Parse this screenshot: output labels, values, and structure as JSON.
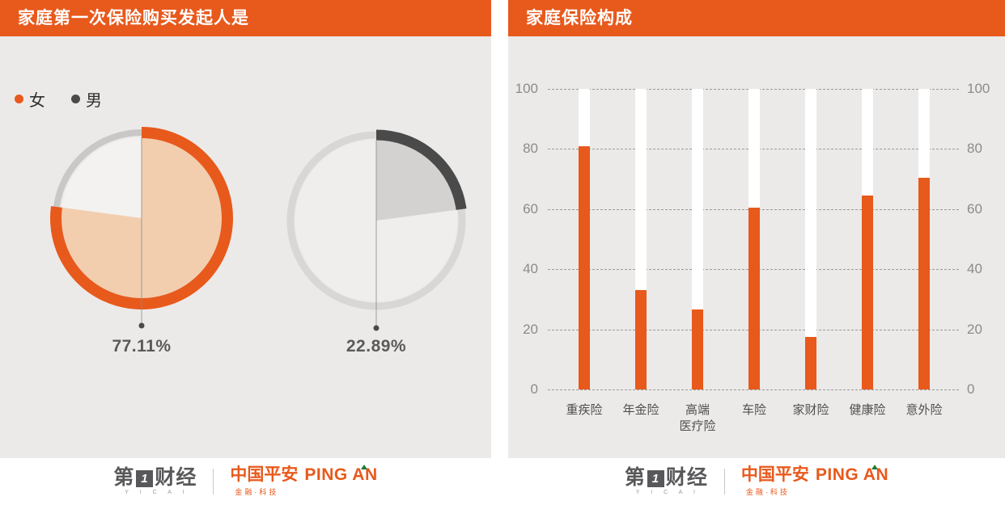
{
  "chart_data": [
    {
      "type": "pie",
      "title": "家庭第一次保险购买发起人是",
      "legend": [
        {
          "label": "女",
          "color": "#e8591c"
        },
        {
          "label": "男",
          "color": "#4a4a4a"
        }
      ],
      "slices": [
        {
          "name": "女",
          "value": 77.11,
          "label": "77.11%",
          "arc_color": "#e8591c",
          "fill_color": "#f2ceaf",
          "rest_arc_color": "#c9c8c6",
          "rest_fill_color": "#f3f2f0"
        },
        {
          "name": "男",
          "value": 22.89,
          "label": "22.89%",
          "arc_color": "#4a4a4a",
          "fill_color": "#d3d2d0",
          "rest_arc_color": "#d8d7d5",
          "rest_fill_color": "#efeeec"
        }
      ],
      "layout": "two gauge rings side by side, leader line from center down to percent label"
    },
    {
      "type": "bar",
      "title": "家庭保险构成",
      "categories": [
        "重疾险",
        "年金险",
        "高端\n医疗险",
        "车险",
        "家财险",
        "健康险",
        "意外险"
      ],
      "values": [
        81,
        33,
        26.5,
        60.5,
        17.5,
        64.5,
        70.5
      ],
      "ylim": [
        0,
        100
      ],
      "yticks": [
        0,
        20,
        40,
        60,
        80,
        100
      ],
      "bar_color": "#e8591c",
      "track_color": "#ffffff",
      "grid": "dashed horizontal gridlines, y tick labels on both left and right sides"
    }
  ],
  "footer": {
    "yicai_cn_pre": "第",
    "yicai_block": "1",
    "yicai_cn_post": "财经",
    "yicai_sub": "Y I C A I",
    "pingan_cn": "中国平安",
    "pingan_en": "PING AN",
    "pingan_sub": "金融·科技"
  },
  "colors": {
    "accent_orange": "#e8591c",
    "panel_bg": "#ebeae9",
    "dark_gray": "#4a4a4a",
    "axis_text": "#8c8b8a",
    "value_text": "#5a5a5a"
  }
}
